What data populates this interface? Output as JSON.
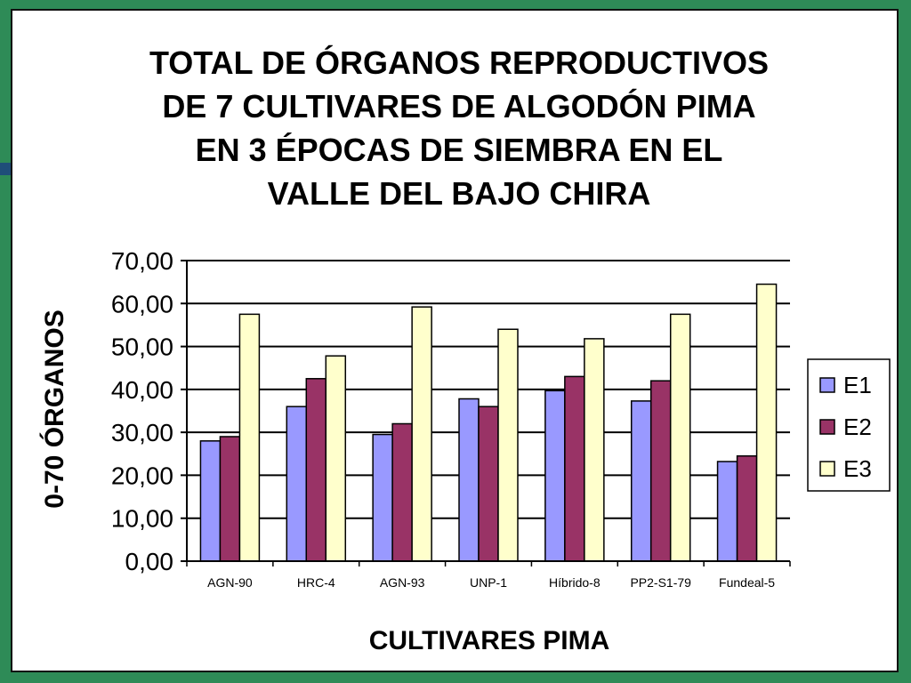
{
  "chart_data": {
    "type": "bar",
    "title_lines": [
      "TOTAL DE ÓRGANOS REPRODUCTIVOS",
      "DE 7 CULTIVARES DE ALGODÓN PIMA",
      "EN 3 ÉPOCAS DE SIEMBRA EN EL",
      "VALLE DEL BAJO CHIRA"
    ],
    "xlabel": "CULTIVARES  PIMA",
    "ylabel": "0-70 ÓRGANOS",
    "ylim": [
      0,
      70
    ],
    "y_ticks": [
      "0,00",
      "10,00",
      "20,00",
      "30,00",
      "40,00",
      "50,00",
      "60,00",
      "70,00"
    ],
    "grid": "horizontal",
    "legend_position": "right",
    "categories": [
      "AGN-90",
      "HRC-4",
      "AGN-93",
      "UNP-1",
      "Híbrido-8",
      "PP2-S1-79",
      "Fundeal-5"
    ],
    "series": [
      {
        "name": "E1",
        "color": "#9999ff",
        "values": [
          28,
          36,
          29.5,
          37.8,
          39.7,
          37.3,
          23.2
        ]
      },
      {
        "name": "E2",
        "color": "#993366",
        "values": [
          29,
          42.5,
          32,
          36,
          43,
          42,
          24.5
        ]
      },
      {
        "name": "E3",
        "color": "#ffffcc",
        "values": [
          57.5,
          47.8,
          59.2,
          54,
          51.8,
          57.5,
          64.5
        ]
      }
    ]
  }
}
